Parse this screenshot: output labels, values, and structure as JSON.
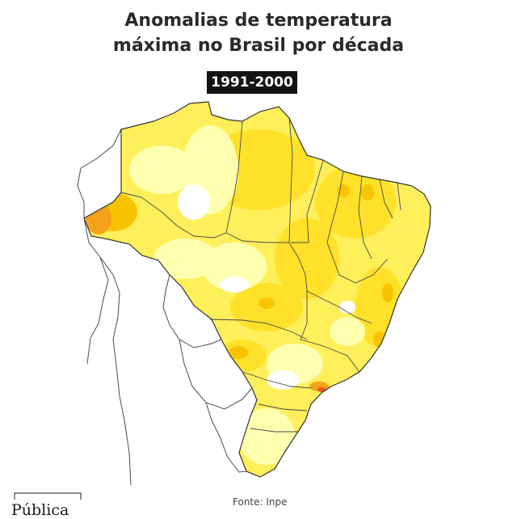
{
  "title": {
    "line1": "Anomalias de temperatura",
    "line2": "máxima no Brasil por década"
  },
  "decade": "1991-2000",
  "source": "Fonte: Inpe",
  "logo": {
    "text": "Pública",
    "icon": "publica-logo"
  },
  "map": {
    "type": "choropleth-anomaly",
    "colors": {
      "none": "#ffffff",
      "light": "#ffffb0",
      "yellow": "#ffef5a",
      "gold": "#ffe12a",
      "orange": "#f9c300",
      "dark_orange": "#f3a21a",
      "red": "#e8541a",
      "border": "#3a3a3a"
    }
  }
}
